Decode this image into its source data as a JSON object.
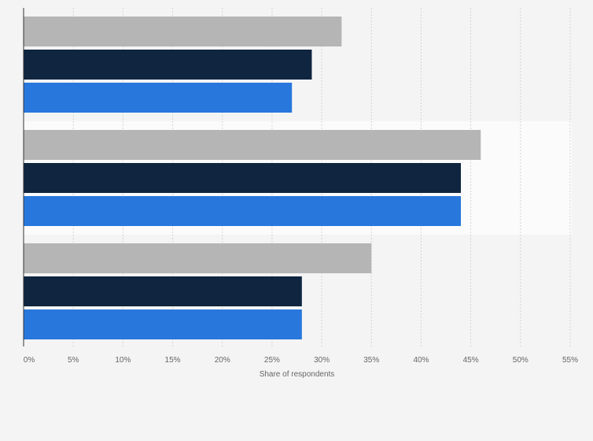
{
  "chart_data": {
    "type": "bar",
    "orientation": "horizontal",
    "categories": [
      "",
      "",
      ""
    ],
    "series": [
      {
        "values": [
          32,
          46,
          35
        ],
        "color": "#b5b5b5"
      },
      {
        "values": [
          29,
          44,
          28
        ],
        "color": "#0f2540"
      },
      {
        "values": [
          27,
          44,
          28
        ],
        "color": "#2877dd"
      }
    ],
    "xlabel": "Share of respondents",
    "xlim": [
      0,
      55
    ],
    "x_ticks": [
      0,
      5,
      10,
      15,
      20,
      25,
      30,
      35,
      40,
      45,
      50,
      55
    ],
    "x_tick_labels": [
      "0%",
      "5%",
      "10%",
      "15%",
      "20%",
      "25%",
      "30%",
      "35%",
      "40%",
      "45%",
      "50%",
      "55%"
    ],
    "grid": true,
    "highlight_category_index": 1,
    "legend": "none"
  }
}
